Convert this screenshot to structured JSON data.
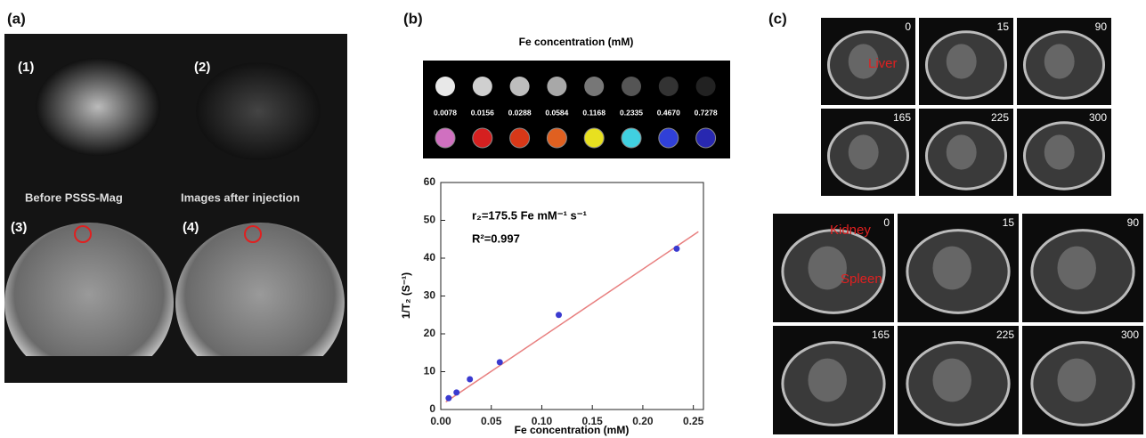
{
  "panels": {
    "a": {
      "label": "(a)",
      "sublabels": [
        "(1)",
        "(2)",
        "(3)",
        "(4)"
      ],
      "captions": [
        "Before PSSS-Mag",
        "Images after injection"
      ]
    },
    "b": {
      "label": "(b)",
      "phantom_title": "Fe concentration (mM)",
      "concentrations": [
        "0.0078",
        "0.0156",
        "0.0288",
        "0.0584",
        "0.1168",
        "0.2335",
        "0.4670",
        "0.7278"
      ]
    },
    "c": {
      "label": "(c)",
      "liver_label": "Liver",
      "liver_times": [
        "0",
        "15",
        "90",
        "165",
        "225",
        "300"
      ],
      "kidney_label": "Kidney",
      "spleen_label": "Spleen",
      "kidney_times": [
        "0",
        "15",
        "90",
        "165",
        "225",
        "300"
      ]
    }
  },
  "chart_data": {
    "type": "scatter",
    "annotations": [
      "r₂=175.5 Fe mM⁻¹ s⁻¹",
      "R²=0.997"
    ],
    "x_label": "Fe concentration (mM)",
    "y_label": "1/T₂ (S⁻¹)",
    "points": {
      "x": [
        0.0078,
        0.0156,
        0.0288,
        0.0584,
        0.1168,
        0.2335
      ],
      "values": [
        3,
        4.5,
        8,
        12.5,
        25,
        42.5
      ],
      "color": "#3a3ad0"
    },
    "fit_line": {
      "x": [
        0.005,
        0.255
      ],
      "values": [
        2,
        47
      ],
      "color": "#e88080"
    },
    "xlim": [
      0,
      0.26
    ],
    "ylim": [
      0,
      60
    ],
    "xticks": [
      {
        "value": 0,
        "label": "0.00"
      },
      0.05,
      {
        "value": 0.1,
        "label": "0.10"
      },
      0.15,
      {
        "value": 0.2,
        "label": "0.20"
      },
      0.25
    ],
    "yticks": [
      0,
      10,
      20,
      30,
      40,
      50,
      60
    ]
  }
}
